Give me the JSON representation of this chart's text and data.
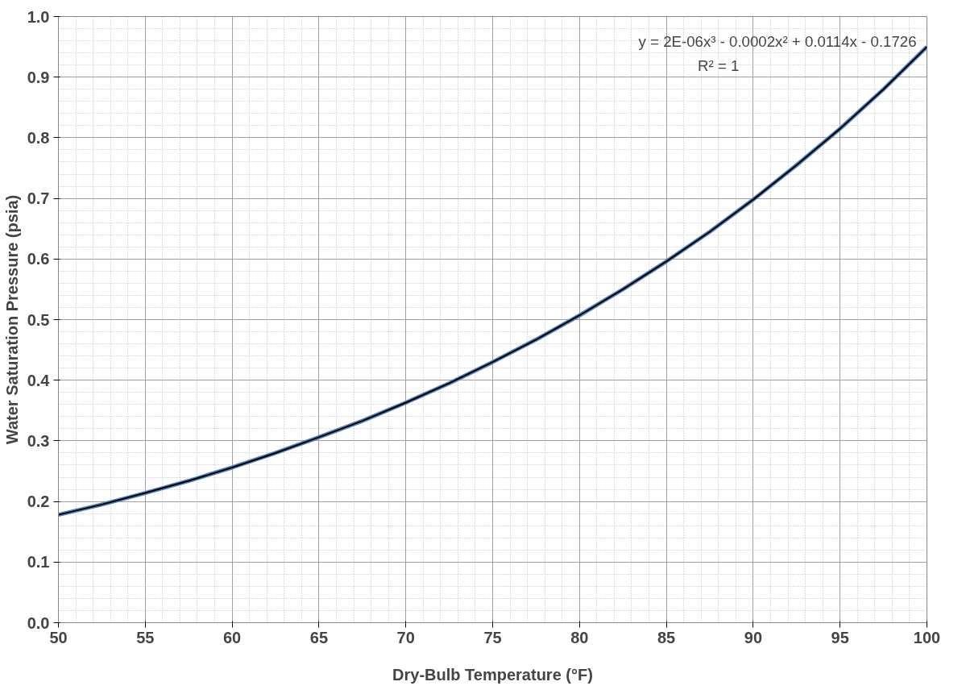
{
  "chart_data": {
    "type": "line",
    "xlabel": "Dry-Bulb Temperature (°F)",
    "ylabel": "Water Saturation Pressure (psia)",
    "xlim": [
      50,
      100
    ],
    "xticks": [
      50,
      55,
      60,
      65,
      70,
      75,
      80,
      85,
      90,
      95,
      100
    ],
    "ylim": [
      0,
      1.0
    ],
    "yticks": [
      {
        "value": 0,
        "label": "0.0"
      },
      0.1,
      0.2,
      0.3,
      0.4,
      0.5,
      0.6,
      0.7,
      0.8,
      0.9,
      {
        "value": 1.0,
        "label": "1.0"
      }
    ],
    "grid": true,
    "marker": "none",
    "line_style": "solid",
    "annotations": [
      "y = 2E-06x³ - 0.0002x² + 0.0114x - 0.1726",
      "R² = 1"
    ],
    "series": [
      {
        "color": "#4f81bd",
        "x": [
          50,
          52.5,
          55,
          57.5,
          60,
          62.5,
          65,
          67.5,
          70,
          72.5,
          75,
          77.5,
          80,
          82.5,
          85,
          87.5,
          90,
          92.5,
          95,
          97.5,
          100
        ],
        "values": [
          0.178,
          0.195,
          0.214,
          0.234,
          0.256,
          0.28,
          0.306,
          0.333,
          0.363,
          0.395,
          0.43,
          0.467,
          0.507,
          0.55,
          0.596,
          0.645,
          0.698,
          0.755,
          0.815,
          0.88,
          0.95
        ]
      },
      {
        "color": "#000000",
        "x": [
          50,
          52.5,
          55,
          57.5,
          60,
          62.5,
          65,
          67.5,
          70,
          72.5,
          75,
          77.5,
          80,
          82.5,
          85,
          87.5,
          90,
          92.5,
          95,
          97.5,
          100
        ],
        "values": [
          0.178,
          0.195,
          0.214,
          0.234,
          0.256,
          0.28,
          0.306,
          0.333,
          0.363,
          0.395,
          0.43,
          0.467,
          0.507,
          0.55,
          0.596,
          0.645,
          0.698,
          0.755,
          0.815,
          0.88,
          0.95
        ]
      }
    ]
  }
}
